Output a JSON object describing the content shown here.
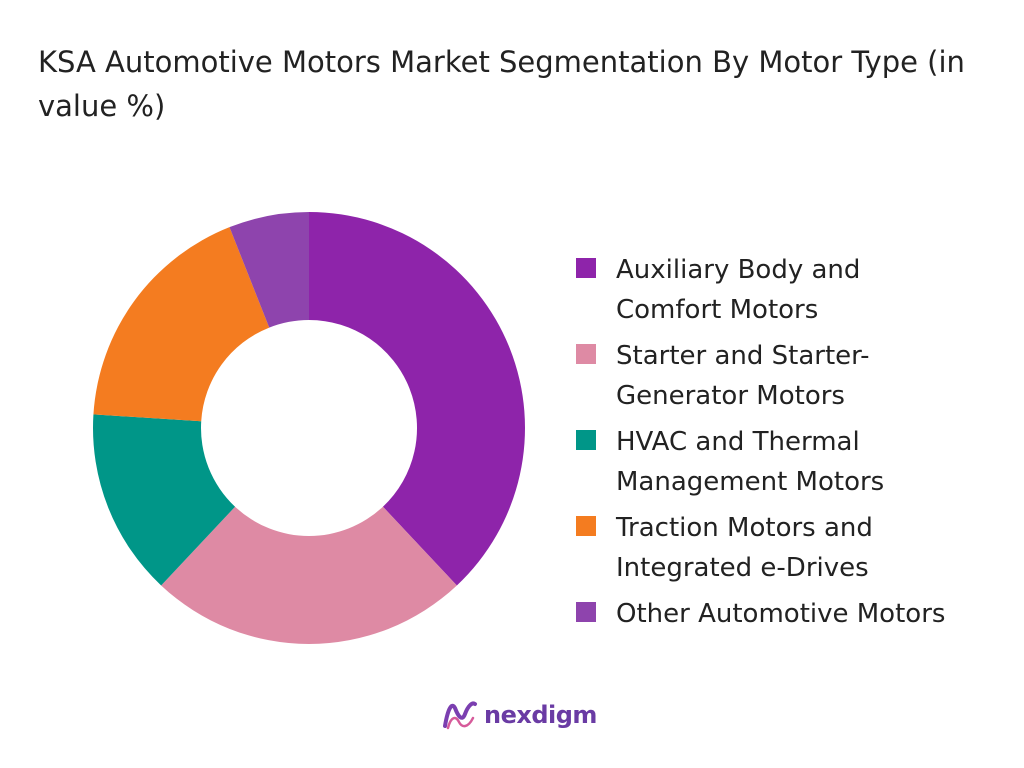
{
  "chart_data": {
    "type": "donut",
    "title": "KSA Automotive Motors Market Segmentation By Motor Type (in value %)",
    "series": [
      {
        "name": "Auxiliary Body and\nComfort Motors",
        "value": 38,
        "color": "#8e24aa"
      },
      {
        "name": "Starter and Starter-\nGenerator Motors",
        "value": 24,
        "color": "#de8aa4"
      },
      {
        "name": "HVAC and Thermal\nManagement Motors",
        "value": 14,
        "color": "#009688"
      },
      {
        "name": "Traction Motors and\nIntegrated e-Drives",
        "value": 18,
        "color": "#f47c20"
      },
      {
        "name": "Other Automotive Motors",
        "value": 6,
        "color": "#8e44ad"
      }
    ],
    "legend_placement": "right"
  },
  "brand": {
    "name": "nexdigm",
    "icon": "nexdigm-logo-icon"
  }
}
